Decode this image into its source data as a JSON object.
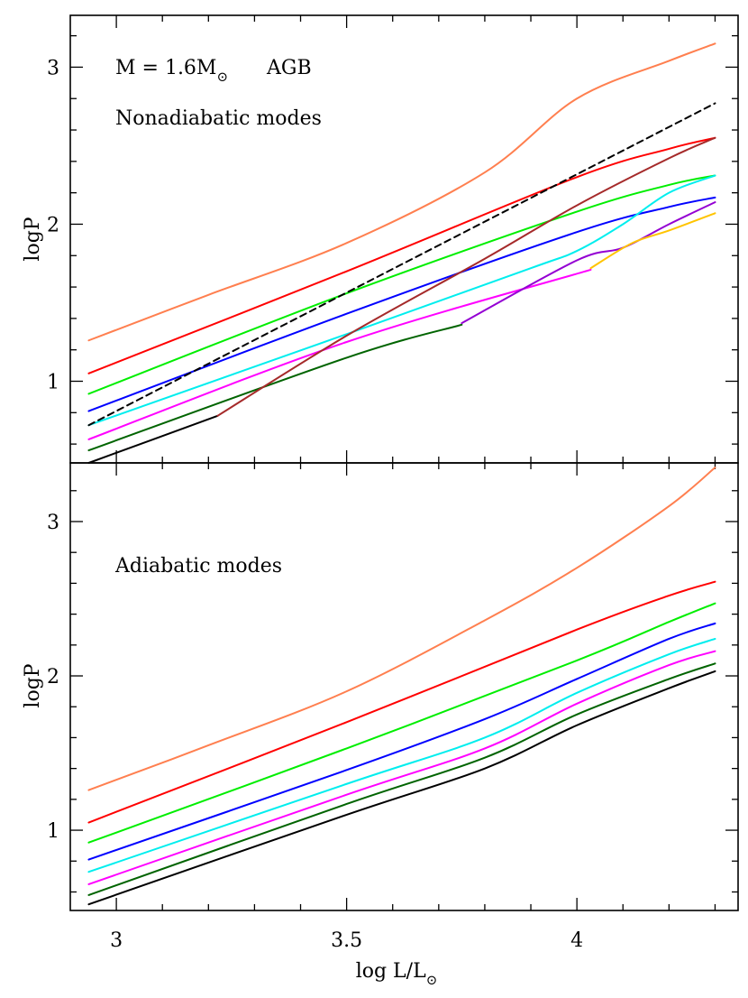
{
  "chart_data": [
    {
      "panel": "top",
      "type": "line",
      "annotation_line1": "M = 1.6M",
      "annotation_suffix": "AGB",
      "annotation_line2": "Nonadiabatic modes",
      "xlabel": "",
      "ylabel": "logP",
      "xlim": [
        2.9,
        4.35
      ],
      "ylim": [
        0.48,
        3.33
      ],
      "x_ticks": [
        3,
        3.5,
        4
      ],
      "y_ticks": [
        1,
        2,
        3
      ],
      "y_tick_labels": [
        "1",
        "2",
        "3"
      ],
      "grid": false,
      "series": [
        {
          "color": "#ff7f4f",
          "x": [
            2.94,
            3.2,
            3.5,
            3.8,
            4.0,
            4.2,
            4.3
          ],
          "y": [
            1.26,
            1.55,
            1.88,
            2.33,
            2.8,
            3.04,
            3.15
          ]
        },
        {
          "color": "#ff0000",
          "x": [
            2.94,
            3.5,
            4.0,
            4.2,
            4.3
          ],
          "y": [
            1.05,
            1.7,
            2.3,
            2.48,
            2.55
          ]
        },
        {
          "color": "#00ee00",
          "x": [
            2.94,
            3.5,
            4.0,
            4.2,
            4.3
          ],
          "y": [
            0.92,
            1.56,
            2.08,
            2.25,
            2.31
          ]
        },
        {
          "color": "#0000ff",
          "x": [
            2.94,
            3.5,
            4.0,
            4.2,
            4.3
          ],
          "y": [
            0.81,
            1.43,
            1.95,
            2.11,
            2.17
          ]
        },
        {
          "color": "#00eeee",
          "x": [
            2.94,
            3.5,
            3.9,
            4.0,
            4.1,
            4.2,
            4.3
          ],
          "y": [
            0.72,
            1.3,
            1.72,
            1.83,
            2.0,
            2.2,
            2.31
          ]
        },
        {
          "color": "#ff00ff",
          "x": [
            2.94,
            3.5,
            4.03
          ],
          "y": [
            0.63,
            1.25,
            1.71
          ]
        },
        {
          "color": "#006400",
          "x": [
            2.94,
            3.5,
            3.75
          ],
          "y": [
            0.56,
            1.15,
            1.36
          ]
        },
        {
          "color": "#000000",
          "x": [
            2.94,
            3.22
          ],
          "y": [
            0.48,
            0.78
          ]
        },
        {
          "color": "#a52a2a",
          "x": [
            3.22,
            3.5,
            3.8,
            4.0,
            4.2,
            4.3
          ],
          "y": [
            0.78,
            1.29,
            1.78,
            2.12,
            2.42,
            2.55
          ]
        },
        {
          "color": "#9400d3",
          "x": [
            3.75,
            4.0,
            4.1,
            4.2,
            4.3
          ],
          "y": [
            1.37,
            1.77,
            1.85,
            2.0,
            2.14
          ]
        },
        {
          "color": "#ffc400",
          "x": [
            4.03,
            4.12,
            4.2,
            4.3
          ],
          "y": [
            1.72,
            1.88,
            1.96,
            2.07
          ]
        },
        {
          "color": "#000000",
          "dashed": true,
          "x": [
            2.94,
            4.3
          ],
          "y": [
            0.72,
            2.77
          ]
        }
      ]
    },
    {
      "panel": "bottom",
      "type": "line",
      "annotation_line1": "Adiabatic modes",
      "xlabel": "log L/L",
      "ylabel": "logP",
      "xlim": [
        2.9,
        4.35
      ],
      "ylim": [
        0.48,
        3.38
      ],
      "x_ticks": [
        3,
        3.5,
        4
      ],
      "x_tick_labels": [
        "3",
        "3.5",
        "4"
      ],
      "y_ticks": [
        1,
        2,
        3
      ],
      "y_tick_labels": [
        "1",
        "2",
        "3"
      ],
      "grid": false,
      "series": [
        {
          "color": "#ff7f4f",
          "x": [
            2.94,
            3.2,
            3.5,
            3.8,
            4.0,
            4.2,
            4.3
          ],
          "y": [
            1.26,
            1.55,
            1.9,
            2.36,
            2.7,
            3.1,
            3.35
          ]
        },
        {
          "color": "#ff0000",
          "x": [
            2.94,
            3.5,
            4.0,
            4.2,
            4.3
          ],
          "y": [
            1.05,
            1.7,
            2.3,
            2.52,
            2.61
          ]
        },
        {
          "color": "#00ee00",
          "x": [
            2.94,
            3.5,
            4.0,
            4.2,
            4.3
          ],
          "y": [
            0.92,
            1.53,
            2.1,
            2.35,
            2.47
          ]
        },
        {
          "color": "#0000ff",
          "x": [
            2.94,
            3.5,
            3.8,
            4.0,
            4.2,
            4.3
          ],
          "y": [
            0.81,
            1.39,
            1.72,
            1.98,
            2.24,
            2.34
          ]
        },
        {
          "color": "#00eeee",
          "x": [
            2.94,
            3.5,
            3.8,
            4.0,
            4.2,
            4.3
          ],
          "y": [
            0.73,
            1.3,
            1.6,
            1.89,
            2.14,
            2.24
          ]
        },
        {
          "color": "#ff00ff",
          "x": [
            2.94,
            3.5,
            3.8,
            4.0,
            4.2,
            4.3
          ],
          "y": [
            0.65,
            1.23,
            1.53,
            1.82,
            2.07,
            2.16
          ]
        },
        {
          "color": "#006400",
          "x": [
            2.94,
            3.5,
            3.8,
            4.0,
            4.2,
            4.3
          ],
          "y": [
            0.58,
            1.17,
            1.47,
            1.75,
            1.98,
            2.08
          ]
        },
        {
          "color": "#000000",
          "x": [
            2.94,
            3.5,
            3.8,
            4.0,
            4.2,
            4.3
          ],
          "y": [
            0.52,
            1.1,
            1.4,
            1.68,
            1.92,
            2.03
          ]
        }
      ]
    }
  ]
}
